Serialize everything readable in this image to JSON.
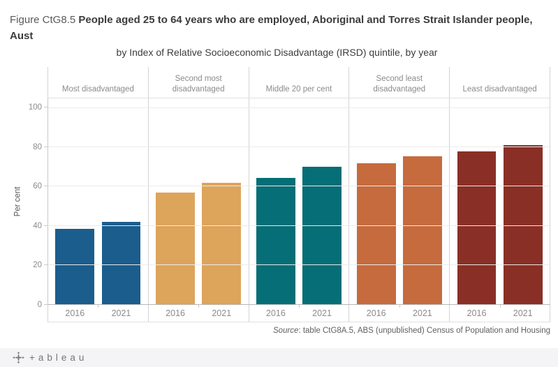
{
  "title": {
    "prefix": "Figure CtG8.5 ",
    "main": "People aged 25 to 64 years who are employed, Aboriginal and Torres Strait Islander people, Aust",
    "subtitle": "by Index of Relative Socioeconomic Disadvantage (IRSD) quintile, by year"
  },
  "chart_data": {
    "type": "bar",
    "title": "People aged 25 to 64 years who are employed, Aboriginal and Torres Strait Islander people, Aust, by Index of Relative Socioeconomic Disadvantage (IRSD) quintile, by year",
    "xlabel": "",
    "ylabel": "Per cent",
    "ylim": [
      0,
      105
    ],
    "yticks": [
      0,
      20,
      40,
      60,
      80,
      100
    ],
    "grid": true,
    "legend_position": "none",
    "categories": [
      "2016",
      "2021"
    ],
    "panels": [
      {
        "label": "Most disadvantaged",
        "color": "#1b5d8d",
        "values": [
          38.5,
          42
        ]
      },
      {
        "label": "Second most disadvantaged",
        "color": "#dda45c",
        "values": [
          57,
          62
        ]
      },
      {
        "label": "Middle 20 per cent",
        "color": "#056e76",
        "values": [
          64.5,
          70
        ]
      },
      {
        "label": "Second least disadvantaged",
        "color": "#c56b3e",
        "values": [
          72,
          75.5
        ]
      },
      {
        "label": "Least disadvantaged",
        "color": "#8a2f26",
        "values": [
          78,
          81
        ]
      }
    ]
  },
  "source": {
    "label": "Source",
    "text": ": table CtG8A.5, ABS (unpublished) Census of Population and Housing"
  },
  "footer": {
    "logo_text": "+ableau"
  }
}
